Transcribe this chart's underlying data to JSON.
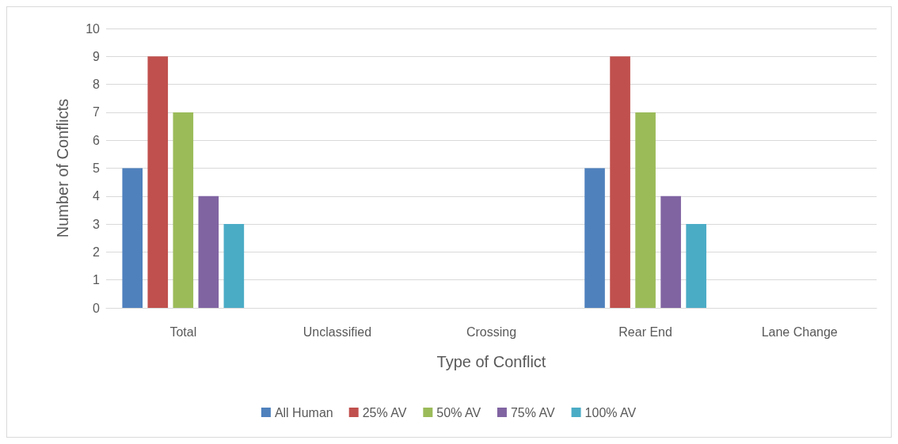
{
  "chart_data": {
    "type": "bar",
    "xlabel": "Type of Conflict",
    "ylabel": "Number of Conflicts",
    "categories": [
      "Total",
      "Unclassified",
      "Crossing",
      "Rear End",
      "Lane Change"
    ],
    "series": [
      {
        "name": "All Human",
        "color": "#4f81bd",
        "values": [
          5,
          0,
          0,
          5,
          0
        ]
      },
      {
        "name": "25% AV",
        "color": "#c0504d",
        "values": [
          9,
          0,
          0,
          9,
          0
        ]
      },
      {
        "name": "50% AV",
        "color": "#9bbb59",
        "values": [
          7,
          0,
          0,
          7,
          0
        ]
      },
      {
        "name": "75% AV",
        "color": "#8064a2",
        "values": [
          4,
          0,
          0,
          4,
          0
        ]
      },
      {
        "name": "100% AV",
        "color": "#4bacc6",
        "values": [
          3,
          0,
          0,
          3,
          0
        ]
      }
    ],
    "ylim": [
      0,
      10
    ],
    "yticks": [
      0,
      1,
      2,
      3,
      4,
      5,
      6,
      7,
      8,
      9,
      10
    ],
    "grid": "y",
    "legend": "bottom"
  }
}
